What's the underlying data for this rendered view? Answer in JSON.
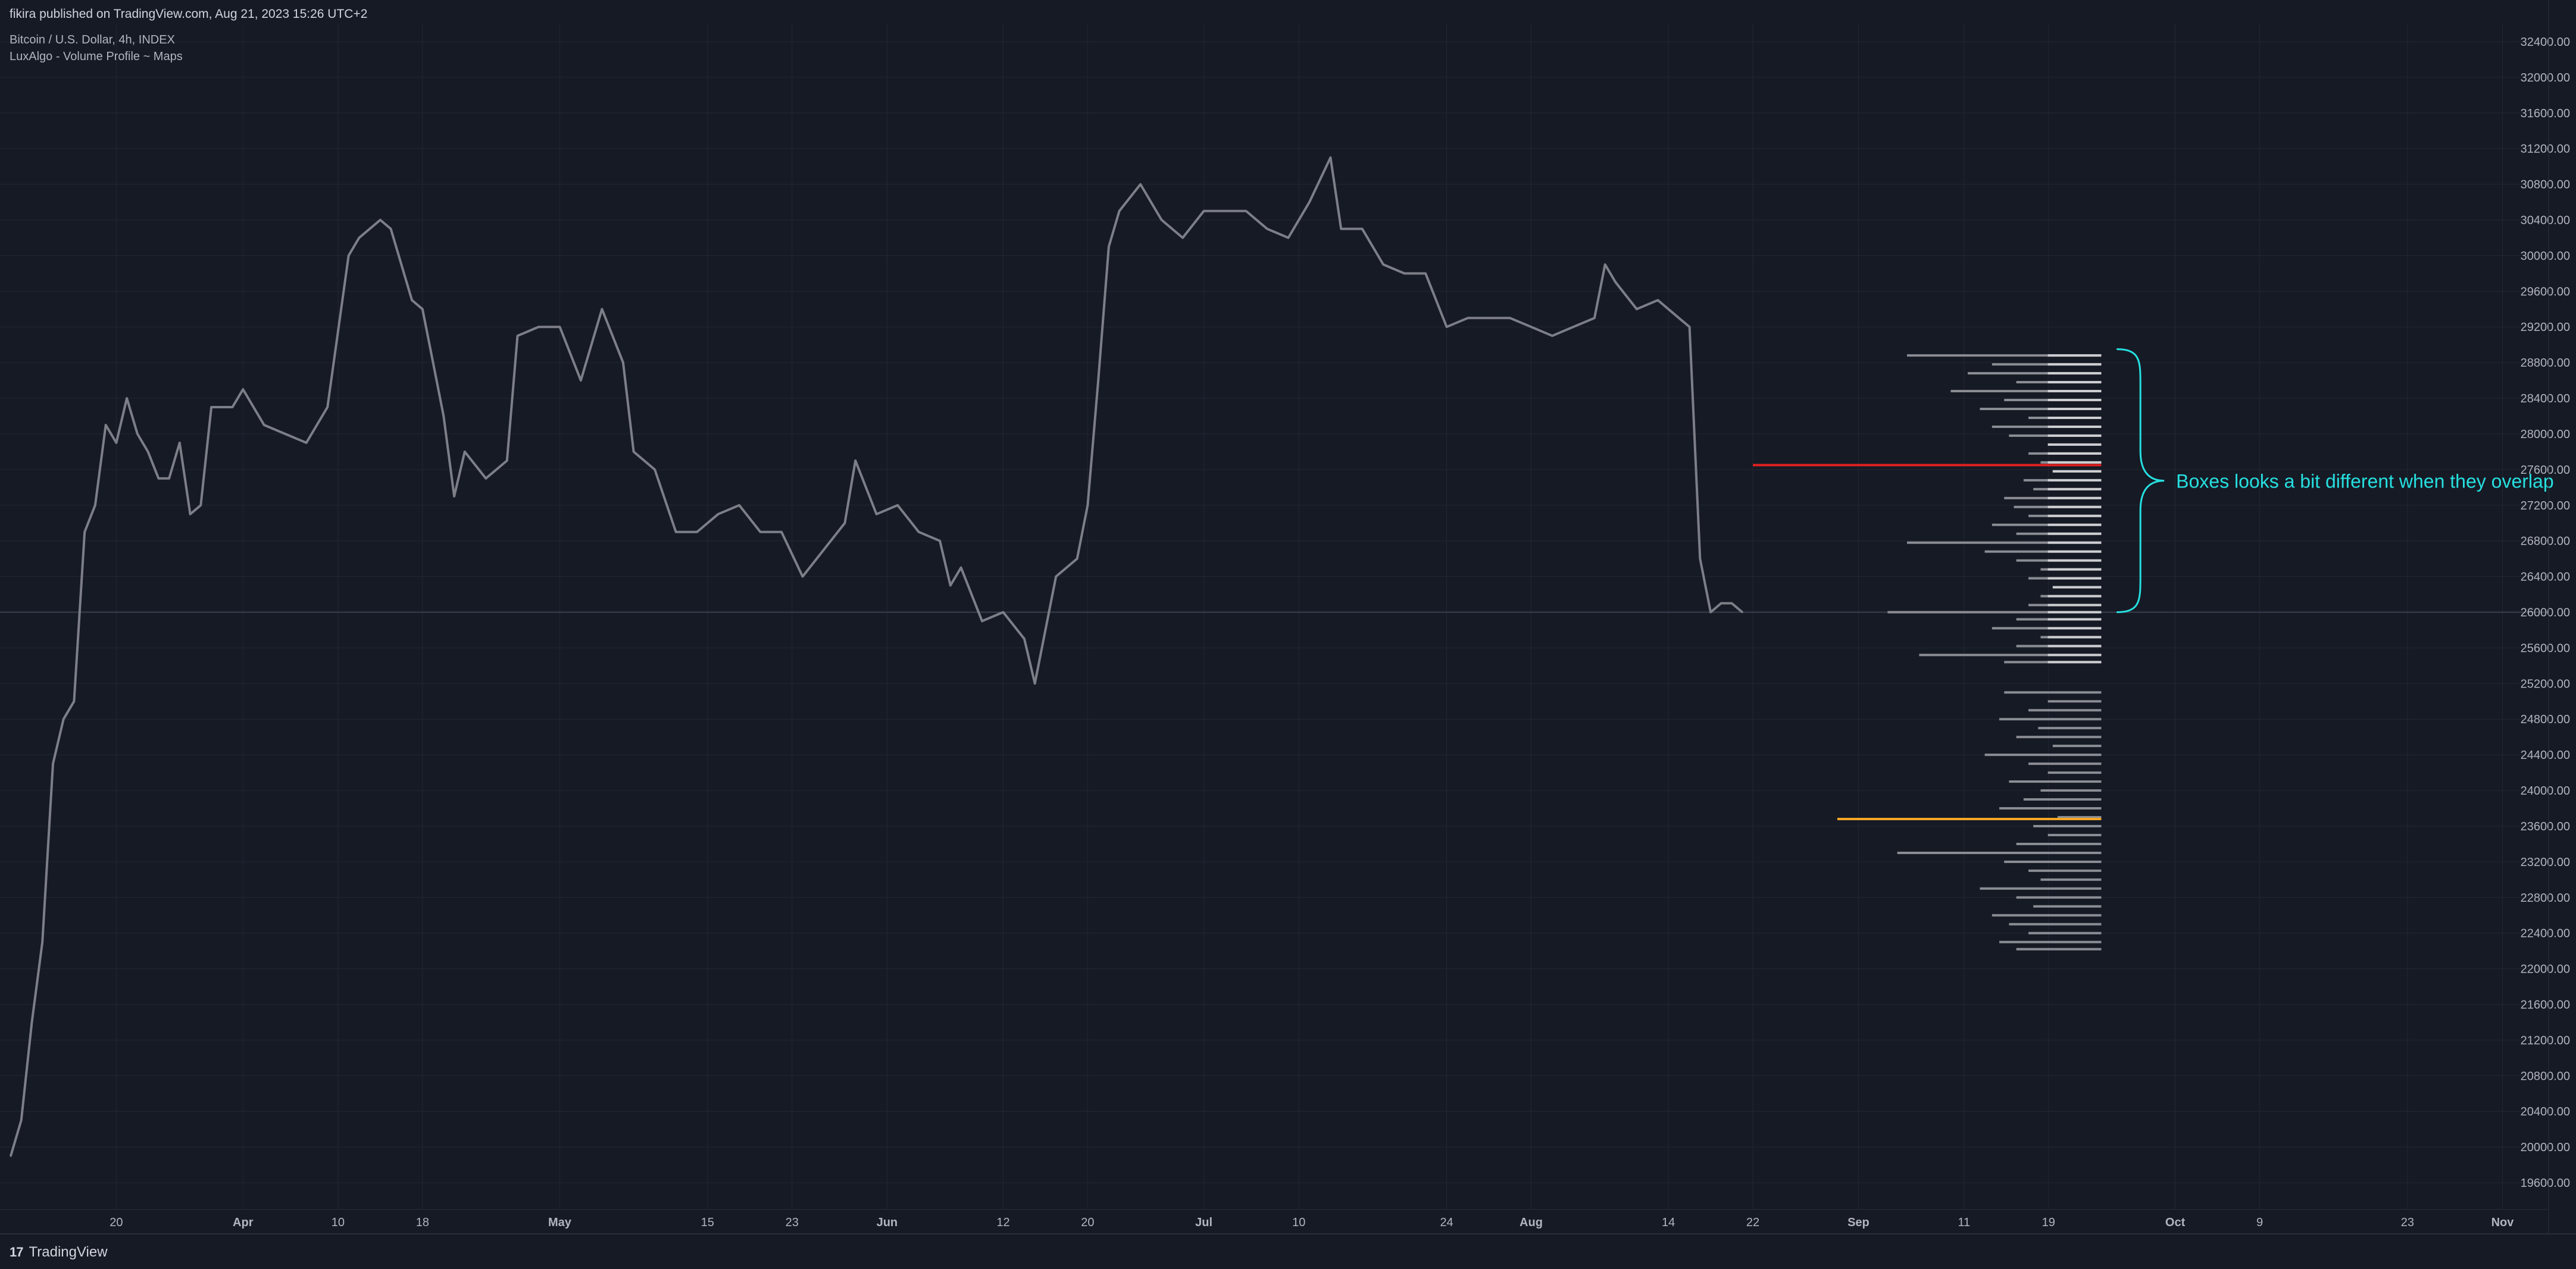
{
  "header": {
    "publish_line": "fikira published on TradingView.com, Aug 21, 2023 15:26 UTC+2",
    "symbol_line": "Bitcoin / U.S. Dollar, 4h, INDEX",
    "indicator_line": "LuxAlgo - Volume Profile ~ Maps"
  },
  "footer": {
    "logo_mark": "17",
    "logo_text": "TradingView"
  },
  "annotation": {
    "text": "Boxes looks a bit different when they overlap",
    "color": "#26e0e0"
  },
  "colors": {
    "background": "#161a25",
    "grid": "#232733",
    "price_line": "#7d7f88",
    "profile": "#8b8d94",
    "profile_highlight": "#d8d9dc",
    "poc_red": "#e02020",
    "poc_orange": "#f5a623",
    "axis_text": "#b2b5be"
  },
  "chart_data": {
    "type": "line",
    "title": "Bitcoin / U.S. Dollar, 4h, INDEX",
    "x": [
      "2023-03-10",
      "2023-03-11",
      "2023-03-12",
      "2023-03-13",
      "2023-03-14",
      "2023-03-15",
      "2023-03-16",
      "2023-03-17",
      "2023-03-18",
      "2023-03-19",
      "2023-03-20",
      "2023-03-21",
      "2023-03-22",
      "2023-03-23",
      "2023-03-24",
      "2023-03-25",
      "2023-03-26",
      "2023-03-27",
      "2023-03-28",
      "2023-03-29",
      "2023-03-30",
      "2023-03-31",
      "2023-04-01",
      "2023-04-03",
      "2023-04-05",
      "2023-04-07",
      "2023-04-09",
      "2023-04-11",
      "2023-04-12",
      "2023-04-14",
      "2023-04-15",
      "2023-04-17",
      "2023-04-18",
      "2023-04-19",
      "2023-04-20",
      "2023-04-21",
      "2023-04-22",
      "2023-04-24",
      "2023-04-26",
      "2023-04-27",
      "2023-04-29",
      "2023-05-01",
      "2023-05-03",
      "2023-05-05",
      "2023-05-07",
      "2023-05-08",
      "2023-05-10",
      "2023-05-12",
      "2023-05-14",
      "2023-05-16",
      "2023-05-18",
      "2023-05-20",
      "2023-05-22",
      "2023-05-24",
      "2023-05-26",
      "2023-05-28",
      "2023-05-29",
      "2023-05-31",
      "2023-06-02",
      "2023-06-04",
      "2023-06-06",
      "2023-06-07",
      "2023-06-08",
      "2023-06-10",
      "2023-06-12",
      "2023-06-14",
      "2023-06-15",
      "2023-06-17",
      "2023-06-19",
      "2023-06-20",
      "2023-06-21",
      "2023-06-22",
      "2023-06-23",
      "2023-06-25",
      "2023-06-27",
      "2023-06-29",
      "2023-07-01",
      "2023-07-03",
      "2023-07-05",
      "2023-07-07",
      "2023-07-09",
      "2023-07-11",
      "2023-07-13",
      "2023-07-14",
      "2023-07-16",
      "2023-07-18",
      "2023-07-20",
      "2023-07-22",
      "2023-07-24",
      "2023-07-26",
      "2023-07-28",
      "2023-07-30",
      "2023-08-01",
      "2023-08-03",
      "2023-08-05",
      "2023-08-07",
      "2023-08-08",
      "2023-08-09",
      "2023-08-11",
      "2023-08-13",
      "2023-08-15",
      "2023-08-16",
      "2023-08-17",
      "2023-08-18",
      "2023-08-19",
      "2023-08-20",
      "2023-08-21"
    ],
    "y": [
      19900,
      20300,
      21400,
      22300,
      24300,
      24800,
      25000,
      26900,
      27200,
      28100,
      27900,
      28400,
      28000,
      27800,
      27500,
      27500,
      27900,
      27100,
      27200,
      28300,
      28300,
      28300,
      28500,
      28100,
      28000,
      27900,
      28300,
      30000,
      30200,
      30400,
      30300,
      29500,
      29400,
      28800,
      28200,
      27300,
      27800,
      27500,
      27700,
      29100,
      29200,
      29200,
      28600,
      29400,
      28800,
      27800,
      27600,
      26900,
      26900,
      27100,
      27200,
      26900,
      26900,
      26400,
      26700,
      27000,
      27700,
      27100,
      27200,
      26900,
      26800,
      26300,
      26500,
      25900,
      26000,
      25700,
      25200,
      26400,
      26600,
      27200,
      28600,
      30100,
      30500,
      30800,
      30400,
      30200,
      30500,
      30500,
      30500,
      30300,
      30200,
      30600,
      31100,
      30300,
      30300,
      29900,
      29800,
      29800,
      29200,
      29300,
      29300,
      29300,
      29200,
      29100,
      29200,
      29300,
      29900,
      29700,
      29400,
      29500,
      29300,
      29200,
      26600,
      26000,
      26100,
      26100,
      26000
    ],
    "ylim": [
      19300,
      32600
    ],
    "xlim": [
      "2023-03-10",
      "2023-11-03"
    ],
    "grid": true,
    "y_ticks": [
      19600,
      20000,
      20400,
      20800,
      21200,
      21600,
      22000,
      22400,
      22800,
      23200,
      23600,
      24000,
      24400,
      24800,
      25200,
      25600,
      26000,
      26400,
      26800,
      27200,
      27600,
      28000,
      28400,
      28800,
      29200,
      29600,
      30000,
      30400,
      30800,
      31200,
      31600,
      32000,
      32400
    ],
    "x_tick_labels": [
      {
        "date": "2023-03-20",
        "label": "20",
        "bold": false
      },
      {
        "date": "2023-04-01",
        "label": "Apr",
        "bold": true
      },
      {
        "date": "2023-04-10",
        "label": "10",
        "bold": false
      },
      {
        "date": "2023-04-18",
        "label": "18",
        "bold": false
      },
      {
        "date": "2023-05-01",
        "label": "May",
        "bold": true
      },
      {
        "date": "2023-05-15",
        "label": "15",
        "bold": false
      },
      {
        "date": "2023-05-23",
        "label": "23",
        "bold": false
      },
      {
        "date": "2023-06-01",
        "label": "Jun",
        "bold": true
      },
      {
        "date": "2023-06-12",
        "label": "12",
        "bold": false
      },
      {
        "date": "2023-06-20",
        "label": "20",
        "bold": false
      },
      {
        "date": "2023-07-01",
        "label": "Jul",
        "bold": true
      },
      {
        "date": "2023-07-10",
        "label": "10",
        "bold": false
      },
      {
        "date": "2023-07-24",
        "label": "24",
        "bold": false
      },
      {
        "date": "2023-08-01",
        "label": "Aug",
        "bold": true
      },
      {
        "date": "2023-08-14",
        "label": "14",
        "bold": false
      },
      {
        "date": "2023-08-22",
        "label": "22",
        "bold": false
      },
      {
        "date": "2023-09-01",
        "label": "Sep",
        "bold": true
      },
      {
        "date": "2023-09-11",
        "label": "11",
        "bold": false
      },
      {
        "date": "2023-09-19",
        "label": "19",
        "bold": false
      },
      {
        "date": "2023-10-01",
        "label": "Oct",
        "bold": true
      },
      {
        "date": "2023-10-09",
        "label": "9",
        "bold": false
      },
      {
        "date": "2023-10-23",
        "label": "23",
        "bold": false
      },
      {
        "date": "2023-11-01",
        "label": "Nov",
        "bold": true
      }
    ],
    "horizontal_line": 26000,
    "volume_profile": {
      "right_edge": "2023-09-24",
      "max_width_days": 23,
      "rows": [
        {
          "price": 28880,
          "w": 0.8
        },
        {
          "price": 28780,
          "w": 0.45
        },
        {
          "price": 28680,
          "w": 0.55
        },
        {
          "price": 28580,
          "w": 0.35
        },
        {
          "price": 28480,
          "w": 0.62
        },
        {
          "price": 28380,
          "w": 0.4
        },
        {
          "price": 28280,
          "w": 0.5
        },
        {
          "price": 28180,
          "w": 0.3
        },
        {
          "price": 28080,
          "w": 0.45
        },
        {
          "price": 27980,
          "w": 0.38
        },
        {
          "price": 27880,
          "w": 0.22
        },
        {
          "price": 27780,
          "w": 0.3
        },
        {
          "price": 27680,
          "w": 0.25
        },
        {
          "price": 27580,
          "w": 0.2
        },
        {
          "price": 27480,
          "w": 0.32
        },
        {
          "price": 27380,
          "w": 0.28
        },
        {
          "price": 27280,
          "w": 0.4
        },
        {
          "price": 27180,
          "w": 0.36
        },
        {
          "price": 27080,
          "w": 0.3
        },
        {
          "price": 26980,
          "w": 0.45
        },
        {
          "price": 26880,
          "w": 0.35
        },
        {
          "price": 26780,
          "w": 0.8
        },
        {
          "price": 26680,
          "w": 0.48
        },
        {
          "price": 26580,
          "w": 0.35
        },
        {
          "price": 26480,
          "w": 0.25
        },
        {
          "price": 26380,
          "w": 0.3
        },
        {
          "price": 26280,
          "w": 0.2
        },
        {
          "price": 26180,
          "w": 0.25
        },
        {
          "price": 26080,
          "w": 0.3
        },
        {
          "price": 26000,
          "w": 0.88
        },
        {
          "price": 25920,
          "w": 0.35
        },
        {
          "price": 25820,
          "w": 0.45
        },
        {
          "price": 25720,
          "w": 0.25
        },
        {
          "price": 25620,
          "w": 0.35
        },
        {
          "price": 25520,
          "w": 0.75
        },
        {
          "price": 25440,
          "w": 0.4
        },
        {
          "price": 25100,
          "w": 0.4
        },
        {
          "price": 25000,
          "w": 0.22
        },
        {
          "price": 24900,
          "w": 0.3
        },
        {
          "price": 24800,
          "w": 0.42
        },
        {
          "price": 24700,
          "w": 0.26
        },
        {
          "price": 24600,
          "w": 0.35
        },
        {
          "price": 24500,
          "w": 0.2
        },
        {
          "price": 24400,
          "w": 0.48
        },
        {
          "price": 24300,
          "w": 0.3
        },
        {
          "price": 24200,
          "w": 0.22
        },
        {
          "price": 24100,
          "w": 0.38
        },
        {
          "price": 24000,
          "w": 0.25
        },
        {
          "price": 23900,
          "w": 0.32
        },
        {
          "price": 23800,
          "w": 0.42
        },
        {
          "price": 23700,
          "w": 0.18
        },
        {
          "price": 23600,
          "w": 0.28
        },
        {
          "price": 23500,
          "w": 0.22
        },
        {
          "price": 23400,
          "w": 0.35
        },
        {
          "price": 23300,
          "w": 0.84
        },
        {
          "price": 23200,
          "w": 0.4
        },
        {
          "price": 23100,
          "w": 0.3
        },
        {
          "price": 23000,
          "w": 0.25
        },
        {
          "price": 22900,
          "w": 0.5
        },
        {
          "price": 22800,
          "w": 0.35
        },
        {
          "price": 22700,
          "w": 0.28
        },
        {
          "price": 22600,
          "w": 0.45
        },
        {
          "price": 22500,
          "w": 0.38
        },
        {
          "price": 22400,
          "w": 0.3
        },
        {
          "price": 22300,
          "w": 0.42
        },
        {
          "price": 22220,
          "w": 0.35
        }
      ],
      "poc_red": {
        "price": 27650,
        "from": "2023-08-22"
      },
      "poc_orange": {
        "price": 23680,
        "from": "2023-08-30"
      }
    },
    "brace": {
      "top": 28950,
      "bottom": 26000,
      "date": "2023-09-25"
    }
  }
}
